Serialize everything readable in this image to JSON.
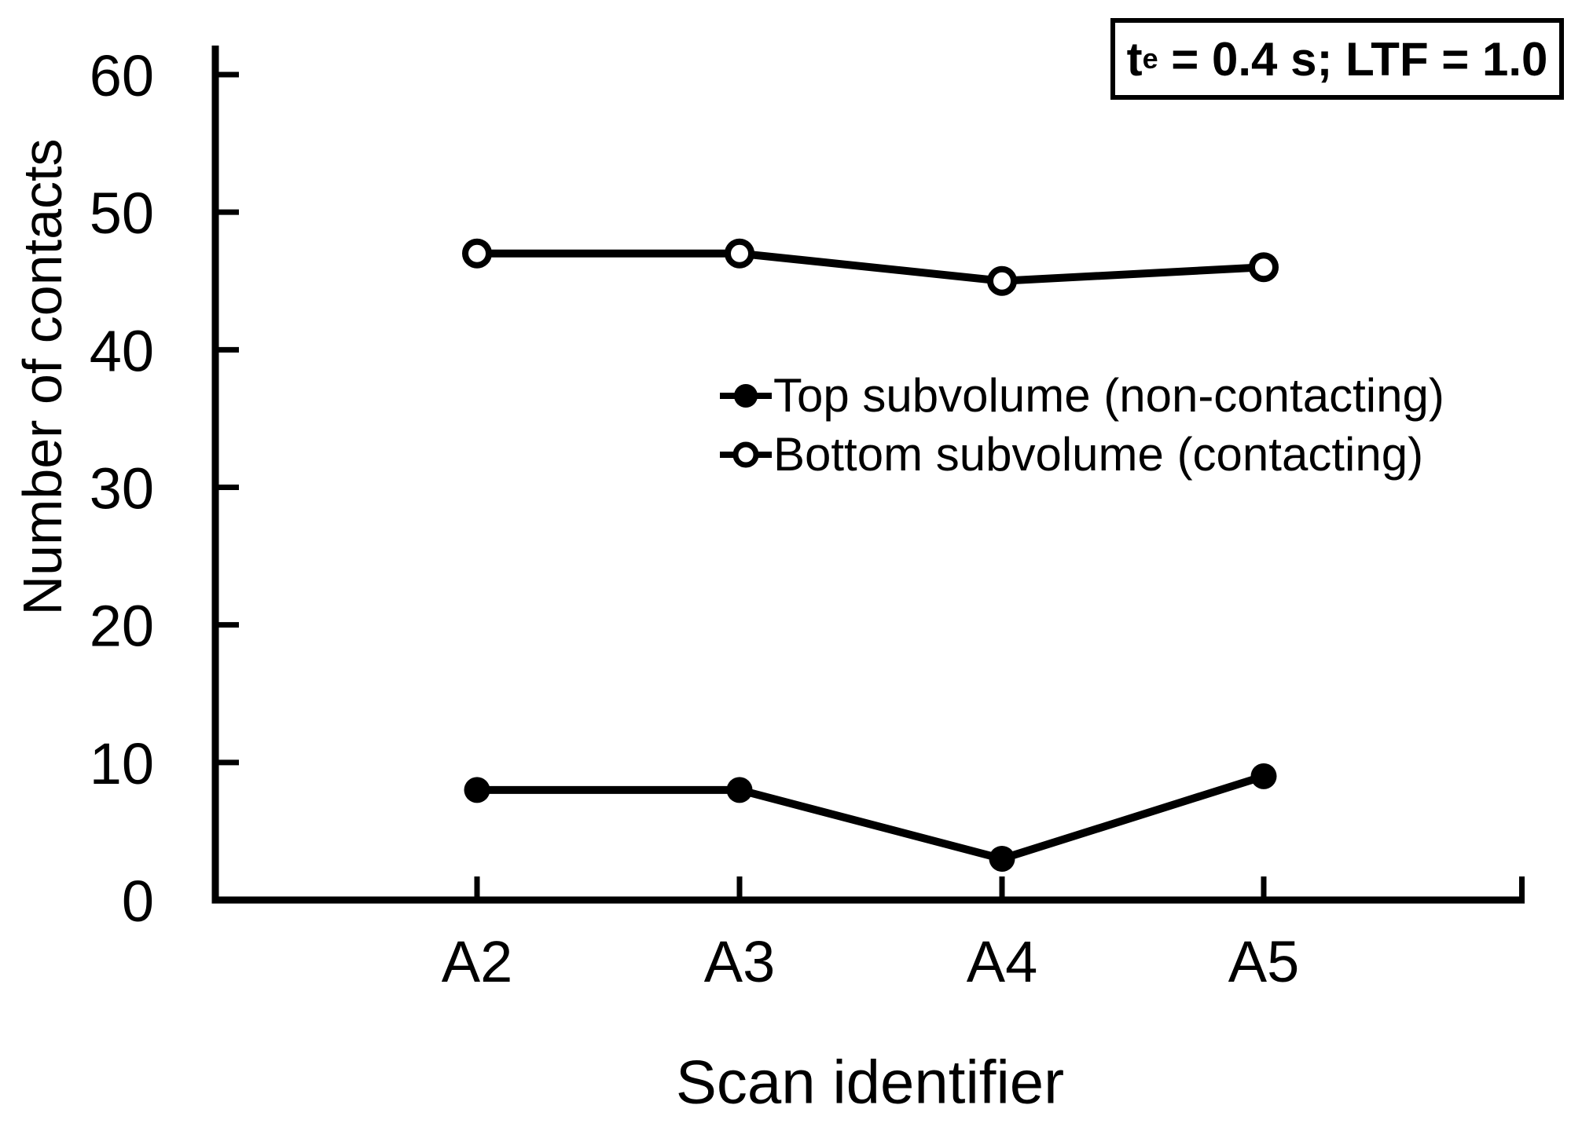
{
  "figure": {
    "background": "#ffffff",
    "ink": "#000000"
  },
  "annotation_box": {
    "prefix": "t",
    "subscript": "e",
    "rest": " = 0.4 s; LTF = 1.0",
    "full_text": "t_e = 0.4 s; LTF = 1.0"
  },
  "chart_data": {
    "type": "line",
    "title": "",
    "xlabel": "Scan identifier",
    "ylabel": "Number of contacts",
    "categories": [
      "A2",
      "A3",
      "A4",
      "A5"
    ],
    "series": [
      {
        "name": "Top subvolume (non-contacting)",
        "marker": "filled-circle",
        "color": "#000000",
        "values": [
          8,
          8,
          3,
          9
        ]
      },
      {
        "name": "Bottom subvolume (contacting)",
        "marker": "open-circle",
        "color": "#000000",
        "values": [
          47,
          47,
          45,
          46
        ]
      }
    ],
    "ylim": [
      0,
      60
    ],
    "yticks": [
      0,
      10,
      20,
      30,
      40,
      50,
      60
    ],
    "grid": false,
    "legend_position": "inside-middle-right",
    "annotation": "t_e = 0.4 s; LTF = 1.0"
  }
}
